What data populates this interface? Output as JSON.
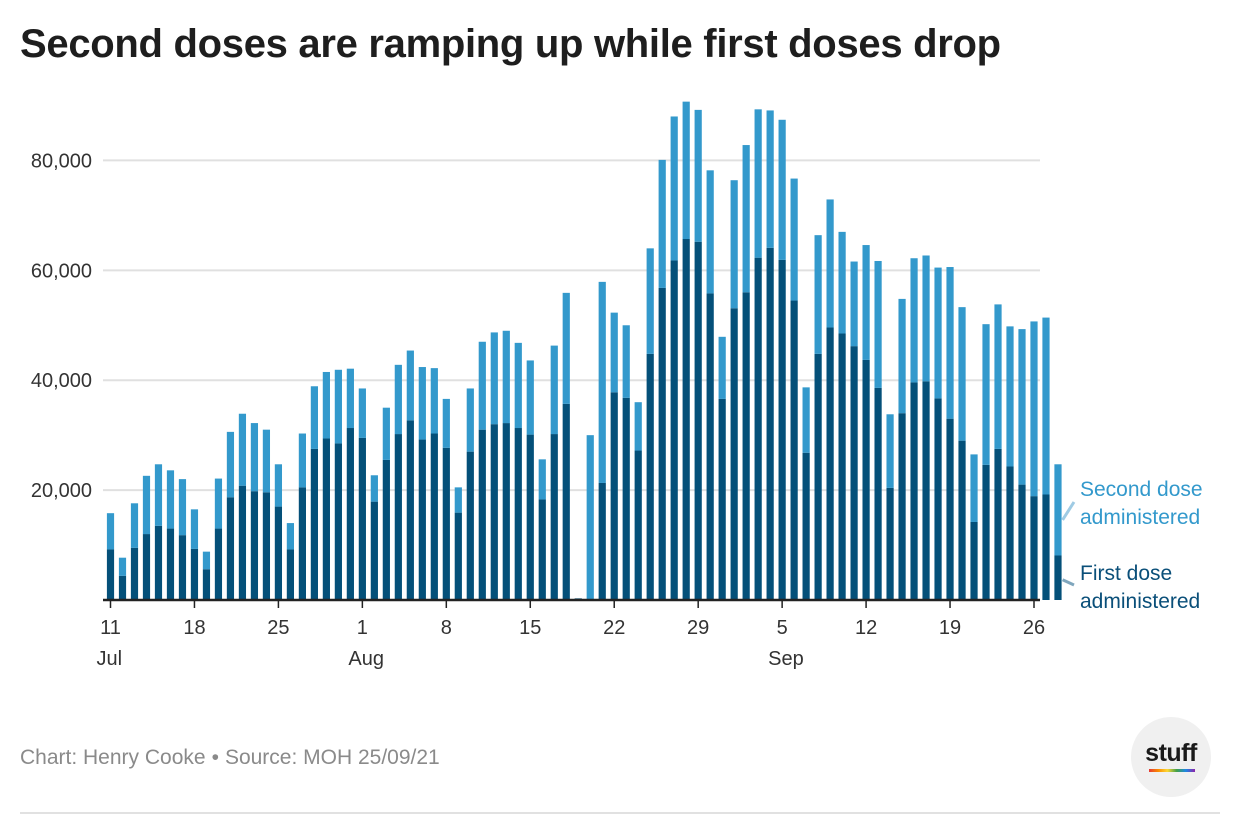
{
  "title": "Second doses are ramping up while first doses drop",
  "footer": {
    "credit": "Chart: Henry Cooke",
    "separator": "•",
    "source": "Source: MOH 25/09/21",
    "logo_text": "stuff"
  },
  "colors": {
    "first_dose": "#045079",
    "second_dose": "#3399cc",
    "second_label": "#3399cc",
    "first_label": "#0a4f79",
    "gridline": "#e0e0e0",
    "axis": "#222222"
  },
  "chart_data": {
    "type": "bar",
    "stacked": true,
    "ylim": [
      0,
      92000
    ],
    "yticks": [
      {
        "value": 20000,
        "label": "20,000"
      },
      {
        "value": 40000,
        "label": "40,000"
      },
      {
        "value": 60000,
        "label": "60,000"
      },
      {
        "value": 80000,
        "label": "80,000"
      }
    ],
    "grid": true,
    "legend_placement": "right, direct labels",
    "x_start": "2021-07-11",
    "x_end": "2021-09-26",
    "xticks": [
      {
        "date": "2021-07-11",
        "label": "11",
        "sublabel": "Jul"
      },
      {
        "date": "2021-07-18",
        "label": "18"
      },
      {
        "date": "2021-07-25",
        "label": "25"
      },
      {
        "date": "2021-08-01",
        "label": "1",
        "sublabel": "Aug"
      },
      {
        "date": "2021-08-08",
        "label": "8"
      },
      {
        "date": "2021-08-15",
        "label": "15"
      },
      {
        "date": "2021-08-22",
        "label": "22"
      },
      {
        "date": "2021-08-29",
        "label": "29"
      },
      {
        "date": "2021-09-05",
        "label": "5",
        "sublabel": "Sep"
      },
      {
        "date": "2021-09-12",
        "label": "12"
      },
      {
        "date": "2021-09-19",
        "label": "19"
      },
      {
        "date": "2021-09-26",
        "label": "26"
      }
    ],
    "series": [
      {
        "name": "First dose administered",
        "values": [
          9200,
          4400,
          9500,
          12000,
          13500,
          13000,
          11800,
          9300,
          5600,
          13000,
          18700,
          20800,
          19800,
          19600,
          17000,
          9200,
          20500,
          27500,
          29400,
          28500,
          31300,
          29500,
          17900,
          25500,
          30200,
          32700,
          29200,
          30300,
          27700,
          15900,
          27000,
          31000,
          32000,
          32200,
          31300,
          30100,
          18300,
          30200,
          35700,
          300,
          0,
          21300,
          37800,
          36800,
          27200,
          44800,
          56800,
          61800,
          65700,
          65200,
          55800,
          36600,
          53100,
          56000,
          62300,
          64100,
          61900,
          54500,
          26800,
          44800,
          49600,
          48500,
          46200,
          43700,
          38600,
          20400,
          34000,
          39600,
          39800,
          36700,
          33000,
          29000,
          14200,
          24600,
          27500,
          24300,
          21000,
          18900,
          19200,
          8100
        ]
      },
      {
        "name": "Second dose administered",
        "values": [
          6600,
          3300,
          8100,
          10600,
          11200,
          10600,
          10200,
          7200,
          3200,
          9100,
          11900,
          13100,
          12400,
          11400,
          7700,
          4800,
          9800,
          11400,
          12100,
          13400,
          10800,
          9000,
          4800,
          9500,
          12600,
          12700,
          13200,
          11900,
          8900,
          4600,
          11500,
          16000,
          16700,
          16800,
          15500,
          13500,
          7300,
          16100,
          20200,
          0,
          30000,
          36600,
          14500,
          13200,
          8800,
          19200,
          23300,
          26200,
          25000,
          24000,
          22400,
          11300,
          23300,
          26800,
          27000,
          25000,
          25500,
          22200,
          11900,
          21600,
          23300,
          18500,
          15400,
          20900,
          23100,
          13400,
          20800,
          22600,
          22900,
          23800,
          27600,
          24300,
          12300,
          25600,
          26300,
          25500,
          28300,
          31800,
          32200,
          16600
        ]
      }
    ]
  }
}
